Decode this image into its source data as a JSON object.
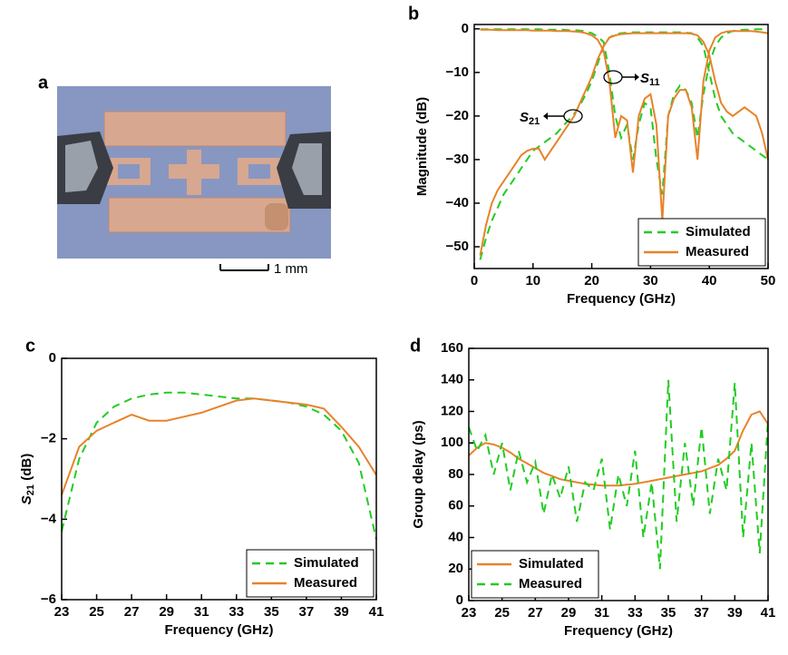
{
  "figure": {
    "panel_labels": [
      "a",
      "b",
      "c",
      "d"
    ],
    "scale_bar": "1 mm"
  },
  "chart_data": [
    {
      "type": "line",
      "xlabel": "Frequency (GHz)",
      "ylabel": "Magnitude (dB)",
      "xlim": [
        0,
        50
      ],
      "xticks": [
        0,
        10,
        20,
        30,
        40,
        50
      ],
      "ylim": [
        -55,
        1
      ],
      "yticks": [
        0,
        {
          "value": -10,
          "label": "−10"
        },
        {
          "value": -20,
          "label": "−20"
        },
        {
          "value": -30,
          "label": "−30"
        },
        {
          "value": -40,
          "label": "−40"
        },
        {
          "value": -50,
          "label": "−50"
        }
      ],
      "legend": "lower right",
      "annotations": [
        {
          "text": "S",
          "sub": "11"
        },
        {
          "text": "S",
          "sub": "21"
        }
      ],
      "x": [
        1,
        2,
        3,
        4,
        5,
        6,
        7,
        8,
        9,
        10,
        11,
        12,
        13,
        14,
        15,
        16,
        17,
        18,
        19,
        20,
        21,
        22,
        23,
        24,
        25,
        26,
        27,
        28,
        29,
        30,
        31,
        32,
        33,
        34,
        35,
        36,
        37,
        38,
        39,
        40,
        41,
        42,
        43,
        44,
        45,
        46,
        47,
        48,
        49,
        50
      ],
      "series": [
        {
          "name": "Simulated",
          "color": "#22cc22",
          "dash": true,
          "values": [
            -53,
            -48,
            -44,
            -41,
            -38,
            -36,
            -34,
            -32,
            -30,
            -28,
            -27,
            -26,
            -25,
            -24,
            -22.5,
            -21,
            -19.5,
            -17.5,
            -15,
            -12,
            -8,
            -4,
            -2,
            -1.3,
            -1,
            -0.9,
            -0.8,
            -0.8,
            -0.8,
            -0.8,
            -0.8,
            -0.8,
            -0.8,
            -0.8,
            -0.8,
            -0.9,
            -1,
            -2,
            -4,
            -10,
            -16,
            -20,
            -22,
            -24,
            -25,
            -26,
            -27,
            -28,
            -29,
            -30
          ]
        },
        {
          "name": "Simulated",
          "color": "#22cc22",
          "dash": true,
          "values": [
            -0.1,
            -0.1,
            -0.1,
            -0.1,
            -0.1,
            -0.1,
            -0.1,
            -0.1,
            -0.1,
            -0.1,
            -0.1,
            -0.2,
            -0.2,
            -0.2,
            -0.2,
            -0.3,
            -0.3,
            -0.4,
            -0.6,
            -1,
            -1.8,
            -3,
            -10,
            -20,
            -25,
            -22,
            -30,
            -22,
            -17,
            -18,
            -30,
            -38,
            -20,
            -15,
            -13,
            -14,
            -17,
            -25,
            -15,
            -8,
            -4,
            -2,
            -1,
            -0.5,
            -0.3,
            -0.2,
            -0.2,
            -0.1,
            -0.1,
            -0.1
          ]
        },
        {
          "name": "Measured",
          "color": "#e8822a",
          "dash": false,
          "values": [
            -0.2,
            -0.2,
            -0.2,
            -0.3,
            -0.3,
            -0.3,
            -0.3,
            -0.3,
            -0.3,
            -0.4,
            -0.4,
            -0.4,
            -0.4,
            -0.5,
            -0.5,
            -0.5,
            -0.6,
            -0.7,
            -1,
            -1.5,
            -2.5,
            -5,
            -12,
            -25,
            -20,
            -21,
            -33,
            -20,
            -16,
            -15,
            -22,
            -44,
            -20,
            -16,
            -14,
            -14,
            -18,
            -30,
            -12,
            -5,
            -2,
            -1,
            -0.6,
            -0.5,
            -0.5,
            -0.5,
            -0.5,
            -0.6,
            -0.8,
            -1
          ]
        },
        {
          "name": "Measured",
          "color": "#e8822a",
          "dash": false,
          "values": [
            -52,
            -45,
            -40,
            -37,
            -35,
            -33,
            -31,
            -29,
            -28,
            -27.5,
            -27.5,
            -30,
            -28,
            -26,
            -24,
            -22,
            -20,
            -17,
            -14,
            -11,
            -7,
            -4,
            -2,
            -1.5,
            -1.2,
            -1.1,
            -1,
            -1,
            -1,
            -1,
            -1,
            -1,
            -1,
            -1,
            -1,
            -1,
            -1.1,
            -1.5,
            -3,
            -6,
            -12,
            -17,
            -19,
            -20,
            -19,
            -18,
            -19,
            -20,
            -24,
            -30
          ]
        }
      ]
    },
    {
      "type": "line",
      "xlabel": "Frequency (GHz)",
      "ylabel": {
        "text": "S",
        "sub": "21",
        "unit": " (dB)"
      },
      "xlim": [
        23,
        41
      ],
      "xticks": [
        23,
        25,
        27,
        29,
        31,
        33,
        35,
        37,
        39,
        41
      ],
      "ylim": [
        -6,
        0
      ],
      "yticks": [
        0,
        {
          "value": -2,
          "label": "−2"
        },
        {
          "value": -4,
          "label": "−4"
        },
        {
          "value": -6,
          "label": "−6"
        }
      ],
      "legend": "lower right",
      "x": [
        23,
        24,
        25,
        26,
        27,
        28,
        29,
        30,
        31,
        32,
        33,
        34,
        35,
        36,
        37,
        38,
        39,
        40,
        41
      ],
      "series": [
        {
          "name": "Simulated",
          "color": "#22cc22",
          "dash": true,
          "values": [
            -4.3,
            -2.5,
            -1.6,
            -1.2,
            -1.0,
            -0.9,
            -0.85,
            -0.85,
            -0.9,
            -0.95,
            -1.0,
            -1.0,
            -1.05,
            -1.1,
            -1.2,
            -1.4,
            -1.8,
            -2.6,
            -4.5
          ]
        },
        {
          "name": "Measured",
          "color": "#e8822a",
          "dash": false,
          "values": [
            -3.4,
            -2.2,
            -1.8,
            -1.6,
            -1.4,
            -1.55,
            -1.55,
            -1.45,
            -1.35,
            -1.2,
            -1.05,
            -1.0,
            -1.05,
            -1.1,
            -1.15,
            -1.25,
            -1.7,
            -2.2,
            -2.9
          ]
        }
      ]
    },
    {
      "type": "line",
      "xlabel": "Frequency (GHz)",
      "ylabel": "Group delay (ps)",
      "xlim": [
        23,
        41
      ],
      "xticks": [
        23,
        25,
        27,
        29,
        31,
        33,
        35,
        37,
        39,
        41
      ],
      "ylim": [
        0,
        160
      ],
      "yticks": [
        0,
        20,
        40,
        60,
        80,
        100,
        120,
        140,
        160
      ],
      "legend": "lower left",
      "x": [
        23,
        23.5,
        24,
        24.5,
        25,
        25.5,
        26,
        26.5,
        27,
        27.5,
        28,
        28.5,
        29,
        29.5,
        30,
        30.5,
        31,
        31.5,
        32,
        32.5,
        33,
        33.5,
        34,
        34.5,
        35,
        35.5,
        36,
        36.5,
        37,
        37.5,
        38,
        38.5,
        39,
        39.5,
        40,
        40.5,
        41
      ],
      "series": [
        {
          "name": "Simulated",
          "color": "#e8822a",
          "dash": false,
          "values": [
            92,
            97,
            100,
            99,
            97,
            94,
            90,
            87,
            84,
            81,
            79,
            77,
            76,
            75,
            74,
            73.5,
            73,
            73,
            73,
            73.5,
            74,
            75,
            76,
            77,
            78,
            79,
            80,
            81,
            82,
            84,
            86,
            90,
            95,
            108,
            118,
            120,
            112
          ]
        },
        {
          "name": "Measured",
          "color": "#22cc22",
          "dash": true,
          "values": [
            110,
            95,
            105,
            80,
            100,
            70,
            95,
            75,
            88,
            55,
            80,
            65,
            85,
            50,
            75,
            70,
            90,
            45,
            80,
            60,
            95,
            40,
            75,
            20,
            140,
            50,
            100,
            60,
            110,
            55,
            90,
            70,
            138,
            40,
            100,
            30,
            115
          ]
        }
      ]
    }
  ]
}
